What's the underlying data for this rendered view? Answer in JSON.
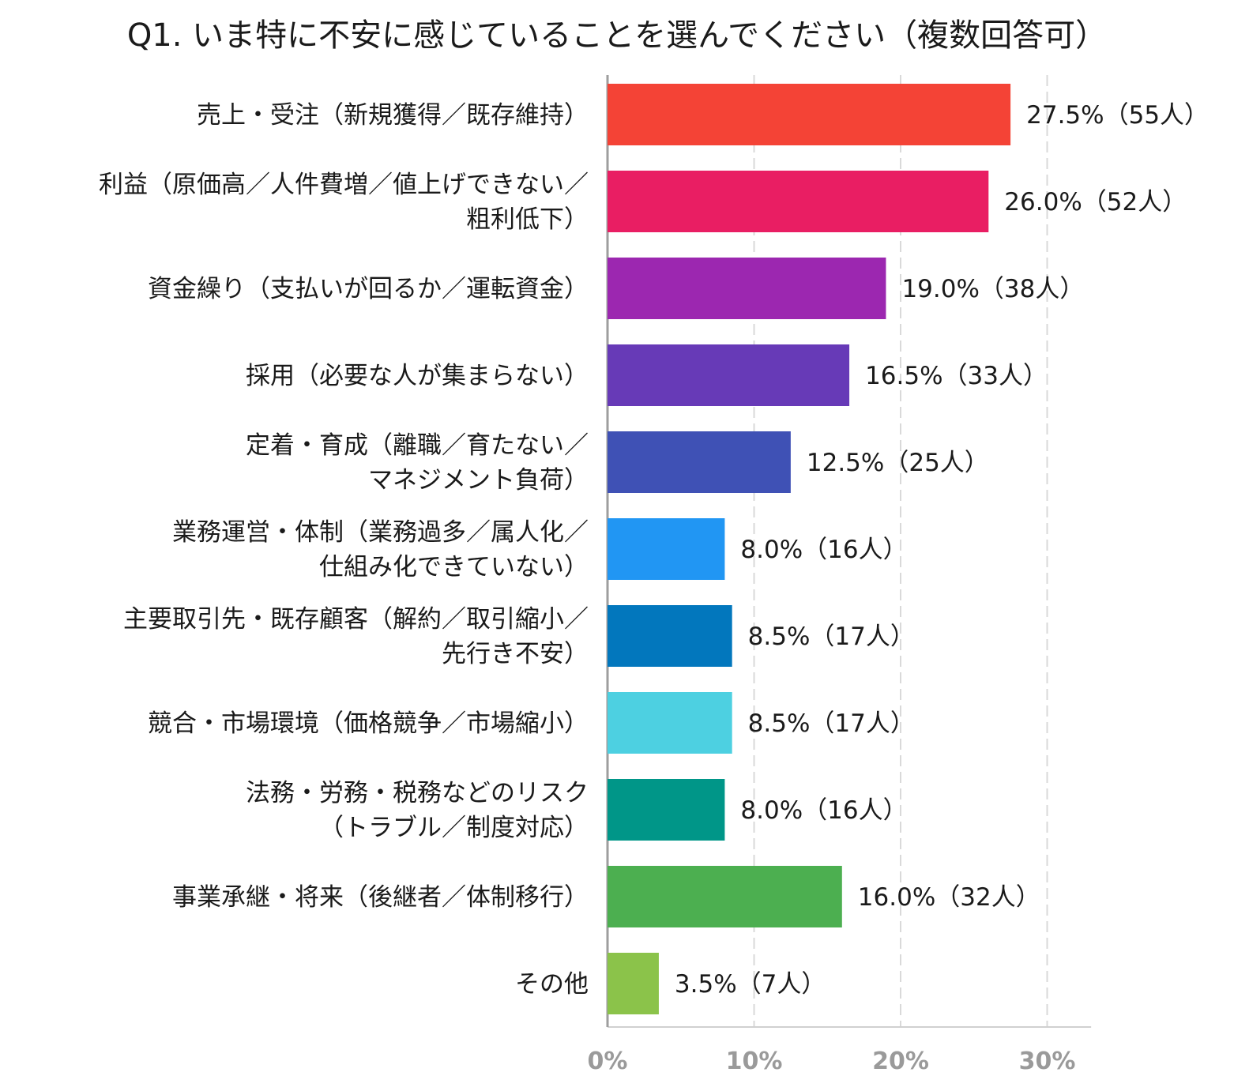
{
  "chart_data": {
    "type": "bar",
    "orientation": "horizontal",
    "title": "Q1. いま特に不安に感じていることを選んでください（複数回答可）",
    "xlabel": "",
    "ylabel": "",
    "xlim": [
      0,
      33
    ],
    "grid": true,
    "x_ticks": [
      {
        "value": 0,
        "label": "0%"
      },
      {
        "value": 10,
        "label": "10%"
      },
      {
        "value": 20,
        "label": "20%"
      },
      {
        "value": 30,
        "label": "30%"
      }
    ],
    "categories": [
      [
        "売上・受注（新規獲得／既存維持）"
      ],
      [
        "利益（原価高／人件費増／値上げできない／",
        "粗利低下）"
      ],
      [
        "資金繰り（支払いが回るか／運転資金）"
      ],
      [
        "採用（必要な人が集まらない）"
      ],
      [
        "定着・育成（離職／育たない／",
        "マネジメント負荷）"
      ],
      [
        "業務運営・体制（業務過多／属人化／",
        "仕組み化できていない）"
      ],
      [
        "主要取引先・既存顧客（解約／取引縮小／",
        "先行き不安）"
      ],
      [
        "競合・市場環境（価格競争／市場縮小）"
      ],
      [
        "法務・労務・税務などのリスク",
        "（トラブル／制度対応）"
      ],
      [
        "事業承継・将来（後継者／体制移行）"
      ],
      [
        "その他"
      ]
    ],
    "values": [
      27.5,
      26.0,
      19.0,
      16.5,
      12.5,
      8.0,
      8.5,
      8.5,
      8.0,
      16.0,
      3.5
    ],
    "data_labels": [
      "27.5%（55人）",
      "26.0%（52人）",
      "19.0%（38人）",
      "16.5%（33人）",
      "12.5%（25人）",
      "8.0%（16人）",
      "8.5%（17人）",
      "8.5%（17人）",
      "8.0%（16人）",
      "16.0%（32人）",
      "3.5%（7人）"
    ],
    "colors": [
      "#f44336",
      "#e91e63",
      "#9c27b0",
      "#673ab7",
      "#3f51b5",
      "#2196f3",
      "#0277bd",
      "#4dd0e1",
      "#009688",
      "#4caf50",
      "#8bc34a"
    ]
  }
}
